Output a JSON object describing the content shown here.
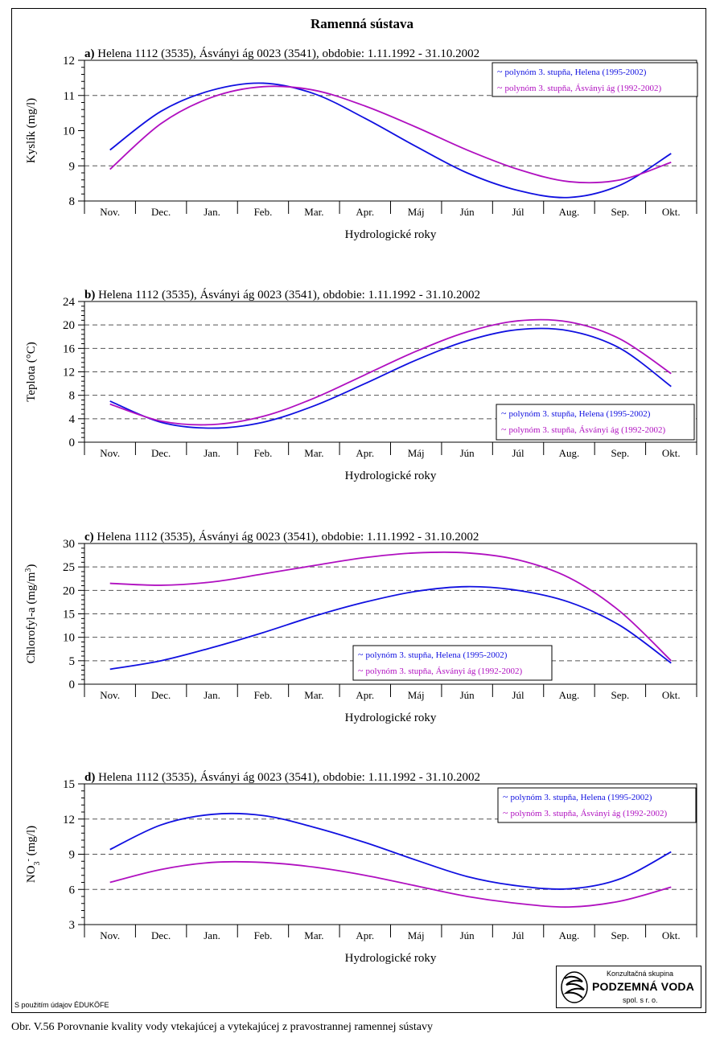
{
  "page": {
    "title": "Ramenná sústava",
    "source_note": "S použitím údajov ÉDUKÖFE",
    "caption": "Obr. V.56 Porovnanie kvality vody vtekajúcej a vytekajúcej z pravostrannej ramennej sústavy",
    "logo": {
      "line1": "Konzultačná skupina",
      "line2": "PODZEMNÁ VODA",
      "line3": "spol. s r. o.",
      "icon": "wave-logo-icon"
    }
  },
  "colors": {
    "helena": "#1010e0",
    "asvanyi": "#b010c0",
    "grid": "#555555"
  },
  "chart_data": [
    {
      "type": "line",
      "panel_label": "a)",
      "title": "Helena 1112 (3535), Ásványi ág 0023 (3541), obdobie: 1.11.1992 - 31.10.2002",
      "ylabel_main": "Kyslík  (mg/l)",
      "ylabel_sub": "",
      "ylabel_sup": "",
      "ylabel_unit": "",
      "xlabel": "Hydrologické roky",
      "categories": [
        "Nov.",
        "Dec.",
        "Jan.",
        "Feb.",
        "Mar.",
        "Apr.",
        "Máj",
        "Jún",
        "Júl",
        "Aug.",
        "Sep.",
        "Okt."
      ],
      "ylim": [
        8,
        12
      ],
      "yticks": [
        "8",
        "9",
        "10",
        "11",
        "12"
      ],
      "ytick_values": [
        8,
        9,
        10,
        11,
        12
      ],
      "gridlines": [
        9,
        11
      ],
      "legend": "top-right",
      "series": [
        {
          "name": "polynóm 3. stupňa, Helena (1995-2002)",
          "color_key": "helena",
          "values": [
            9.45,
            10.55,
            11.15,
            11.35,
            11.05,
            10.35,
            9.55,
            8.8,
            8.3,
            8.1,
            8.45,
            9.35
          ]
        },
        {
          "name": "polynóm 3. stupňa, Ásványi ág (1992-2002)",
          "color_key": "asvanyi",
          "values": [
            8.9,
            10.2,
            10.95,
            11.25,
            11.15,
            10.7,
            10.1,
            9.45,
            8.9,
            8.55,
            8.6,
            9.1
          ]
        }
      ]
    },
    {
      "type": "line",
      "panel_label": "b)",
      "title": "Helena 1112 (3535), Ásványi ág 0023 (3541), obdobie: 1.11.1992 - 31.10.2002",
      "ylabel_main": "Teplota  (°C)",
      "ylabel_sub": "",
      "ylabel_sup": "",
      "ylabel_unit": "",
      "xlabel": "Hydrologické roky",
      "categories": [
        "Nov.",
        "Dec.",
        "Jan.",
        "Feb.",
        "Mar.",
        "Apr.",
        "Máj",
        "Jún",
        "Júl",
        "Aug.",
        "Sep.",
        "Okt."
      ],
      "ylim": [
        0,
        24
      ],
      "yticks": [
        "0",
        "4",
        "8",
        "12",
        "16",
        "20",
        "24"
      ],
      "ytick_values": [
        0,
        4,
        8,
        12,
        16,
        20,
        24
      ],
      "gridlines": [
        4,
        8,
        12,
        16,
        20
      ],
      "legend": "bottom-right",
      "series": [
        {
          "name": "polynóm 3. stupňa, Helena (1995-2002)",
          "color_key": "helena",
          "values": [
            7.0,
            3.4,
            2.4,
            3.4,
            6.2,
            10.0,
            14.0,
            17.3,
            19.2,
            19.0,
            16.0,
            9.5
          ]
        },
        {
          "name": "polynóm 3. stupňa, Ásványi ág (1992-2002)",
          "color_key": "asvanyi",
          "values": [
            6.5,
            3.6,
            3.0,
            4.4,
            7.5,
            11.5,
            15.5,
            18.8,
            20.7,
            20.5,
            17.6,
            11.7
          ]
        }
      ]
    },
    {
      "type": "line",
      "panel_label": "c)",
      "title": "Helena 1112 (3535), Ásványi ág 0023 (3541), obdobie: 1.11.1992 - 31.10.2002",
      "ylabel_main": "Chlorofyl-a  (mg/m",
      "ylabel_sub": "",
      "ylabel_sup": "3",
      "ylabel_unit": ")",
      "xlabel": "Hydrologické roky",
      "categories": [
        "Nov.",
        "Dec.",
        "Jan.",
        "Feb.",
        "Mar.",
        "Apr.",
        "Máj",
        "Jún",
        "Júl",
        "Aug.",
        "Sep.",
        "Okt."
      ],
      "ylim": [
        0,
        30
      ],
      "yticks": [
        "0",
        "5",
        "10",
        "15",
        "20",
        "25",
        "30"
      ],
      "ytick_values": [
        0,
        5,
        10,
        15,
        20,
        25,
        30
      ],
      "gridlines": [
        5,
        10,
        15,
        20,
        25
      ],
      "legend": "bottom-center",
      "series": [
        {
          "name": "polynóm 3. stupňa, Helena (1995-2002)",
          "color_key": "helena",
          "values": [
            3.2,
            5.0,
            7.8,
            11.0,
            14.5,
            17.5,
            19.8,
            20.8,
            20.0,
            17.5,
            12.5,
            4.5
          ]
        },
        {
          "name": "polynóm 3. stupňa, Ásványi ág (1992-2002)",
          "color_key": "asvanyi",
          "values": [
            21.5,
            21.1,
            21.8,
            23.5,
            25.3,
            27.0,
            28.0,
            28.0,
            26.5,
            22.7,
            15.5,
            5.0
          ]
        }
      ]
    },
    {
      "type": "line",
      "panel_label": "d)",
      "title": "Helena 1112 (3535), Ásványi ág 0023 (3541), obdobie: 1.11.1992 - 31.10.2002",
      "ylabel_main": "NO",
      "ylabel_sub": "3",
      "ylabel_sup": "-",
      "ylabel_unit": "  (mg/l)",
      "xlabel": "Hydrologické roky",
      "categories": [
        "Nov.",
        "Dec.",
        "Jan.",
        "Feb.",
        "Mar.",
        "Apr.",
        "Máj",
        "Jún",
        "Júl",
        "Aug.",
        "Sep.",
        "Okt."
      ],
      "ylim": [
        3,
        15
      ],
      "yticks": [
        "3",
        "6",
        "9",
        "12",
        "15"
      ],
      "ytick_values": [
        3,
        6,
        9,
        12,
        15
      ],
      "gridlines": [
        6,
        9,
        12
      ],
      "legend": "top-right",
      "series": [
        {
          "name": "polynóm 3. stupňa, Helena (1995-2002)",
          "color_key": "helena",
          "values": [
            9.4,
            11.5,
            12.4,
            12.3,
            11.3,
            10.0,
            8.5,
            7.1,
            6.3,
            6.05,
            6.9,
            9.2
          ]
        },
        {
          "name": "polynóm 3. stupňa, Ásványi ág (1992-2002)",
          "color_key": "asvanyi",
          "values": [
            6.6,
            7.7,
            8.3,
            8.3,
            7.9,
            7.2,
            6.3,
            5.4,
            4.8,
            4.5,
            5.0,
            6.2
          ]
        }
      ]
    }
  ]
}
